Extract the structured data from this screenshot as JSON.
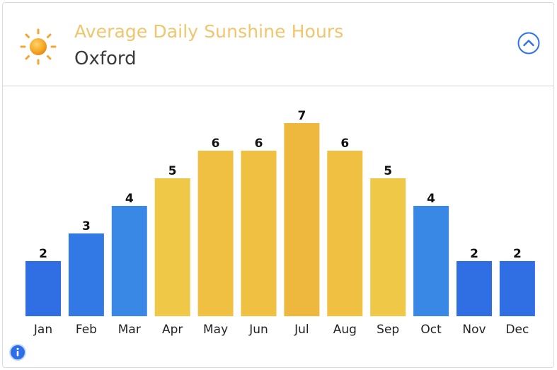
{
  "header": {
    "title": "Average Daily Sunshine Hours",
    "location": "Oxford",
    "sun_icon": "sun-icon",
    "collapse_icon": "chevron-up-circle-icon"
  },
  "colors": {
    "title": "#f0c66d",
    "accent_blue": "#2d74e6",
    "cool_bars": [
      "#2f6fe3",
      "#3a84e6",
      "#3c8ee7"
    ],
    "warm_bars": [
      "#f0c847",
      "#efbf40",
      "#eeb93e"
    ]
  },
  "chart_data": {
    "type": "bar",
    "categories": [
      "Jan",
      "Feb",
      "Mar",
      "Apr",
      "May",
      "Jun",
      "Jul",
      "Aug",
      "Sep",
      "Oct",
      "Nov",
      "Dec"
    ],
    "values": [
      2,
      3,
      4,
      5,
      6,
      6,
      7,
      6,
      5,
      4,
      2,
      2
    ],
    "bar_colors": [
      "#2f6fe3",
      "#3379e5",
      "#3a88e6",
      "#f0c847",
      "#efc042",
      "#efc042",
      "#eeb83e",
      "#efc042",
      "#f0c847",
      "#3a88e6",
      "#2f6fe3",
      "#2f6fe3"
    ],
    "ylim": [
      0,
      7
    ],
    "grid": false,
    "data_labels": true
  },
  "footer": {
    "info_icon": "info-icon"
  }
}
